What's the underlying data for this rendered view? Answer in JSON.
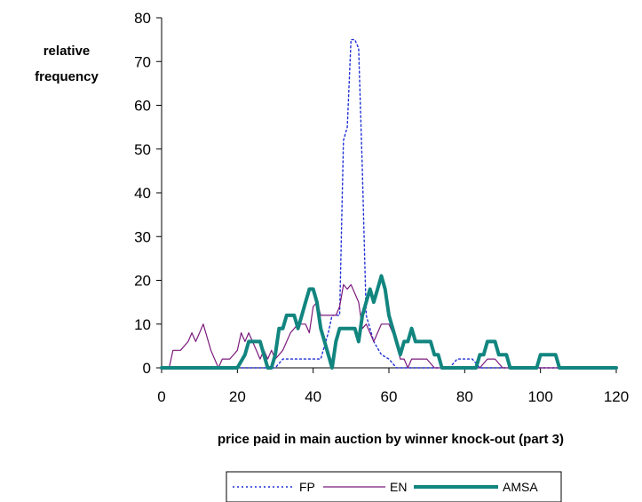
{
  "chart_data": {
    "type": "line",
    "ylabel_lines": [
      "relative",
      "frequency"
    ],
    "xlabel": "price paid in main auction by winner knock-out (part 3)",
    "xlim": [
      0,
      120
    ],
    "ylim": [
      0,
      80
    ],
    "xticks": [
      0,
      20,
      40,
      60,
      80,
      100,
      120
    ],
    "yticks": [
      0,
      10,
      20,
      30,
      40,
      50,
      60,
      70,
      80
    ],
    "legend_position": "bottom",
    "series": [
      {
        "name": "FP",
        "color": "#1f2fd6",
        "style": "dotted",
        "points": [
          [
            0,
            0
          ],
          [
            30,
            0
          ],
          [
            32,
            2
          ],
          [
            42,
            2
          ],
          [
            44,
            8
          ],
          [
            45,
            12
          ],
          [
            47,
            12
          ],
          [
            48,
            52
          ],
          [
            49,
            55
          ],
          [
            50,
            75
          ],
          [
            51,
            75
          ],
          [
            52,
            73
          ],
          [
            53,
            45
          ],
          [
            54,
            12
          ],
          [
            56,
            6
          ],
          [
            58,
            3
          ],
          [
            60,
            2
          ],
          [
            62,
            0
          ],
          [
            76,
            0
          ],
          [
            78,
            2
          ],
          [
            82,
            2
          ],
          [
            84,
            0
          ],
          [
            120,
            0
          ]
        ]
      },
      {
        "name": "EN",
        "color": "#7b1a7b",
        "style": "solid",
        "points": [
          [
            0,
            0
          ],
          [
            2,
            0
          ],
          [
            3,
            4
          ],
          [
            5,
            4
          ],
          [
            7,
            6
          ],
          [
            8,
            8
          ],
          [
            9,
            6
          ],
          [
            10,
            8
          ],
          [
            11,
            10
          ],
          [
            12,
            7
          ],
          [
            13,
            4
          ],
          [
            14,
            2
          ],
          [
            15,
            0
          ],
          [
            16,
            2
          ],
          [
            18,
            2
          ],
          [
            20,
            4
          ],
          [
            21,
            8
          ],
          [
            22,
            6
          ],
          [
            23,
            8
          ],
          [
            24,
            6
          ],
          [
            25,
            4
          ],
          [
            26,
            2
          ],
          [
            27,
            4
          ],
          [
            28,
            2
          ],
          [
            29,
            4
          ],
          [
            30,
            2
          ],
          [
            32,
            4
          ],
          [
            34,
            8
          ],
          [
            36,
            10
          ],
          [
            38,
            10
          ],
          [
            39,
            8
          ],
          [
            40,
            14
          ],
          [
            41,
            15
          ],
          [
            42,
            12
          ],
          [
            44,
            12
          ],
          [
            46,
            12
          ],
          [
            47,
            14
          ],
          [
            48,
            19
          ],
          [
            49,
            18
          ],
          [
            50,
            19
          ],
          [
            51,
            17
          ],
          [
            52,
            15
          ],
          [
            53,
            9
          ],
          [
            54,
            10
          ],
          [
            55,
            8
          ],
          [
            56,
            6
          ],
          [
            57,
            8
          ],
          [
            58,
            10
          ],
          [
            60,
            10
          ],
          [
            61,
            8
          ],
          [
            62,
            6
          ],
          [
            63,
            2
          ],
          [
            64,
            2
          ],
          [
            65,
            0
          ],
          [
            66,
            2
          ],
          [
            68,
            2
          ],
          [
            70,
            2
          ],
          [
            72,
            0
          ],
          [
            84,
            0
          ],
          [
            86,
            2
          ],
          [
            88,
            2
          ],
          [
            90,
            0
          ],
          [
            120,
            0
          ]
        ]
      },
      {
        "name": "AMSA",
        "color": "#12857f",
        "style": "solid-thick",
        "points": [
          [
            0,
            0
          ],
          [
            20,
            0
          ],
          [
            22,
            3
          ],
          [
            23,
            6
          ],
          [
            26,
            6
          ],
          [
            27,
            3
          ],
          [
            28,
            0
          ],
          [
            29,
            0
          ],
          [
            30,
            3
          ],
          [
            31,
            9
          ],
          [
            32,
            9
          ],
          [
            33,
            12
          ],
          [
            35,
            12
          ],
          [
            36,
            9
          ],
          [
            37,
            12
          ],
          [
            38,
            15
          ],
          [
            39,
            18
          ],
          [
            40,
            18
          ],
          [
            41,
            15
          ],
          [
            42,
            9
          ],
          [
            43,
            6
          ],
          [
            44,
            3
          ],
          [
            45,
            0
          ],
          [
            46,
            6
          ],
          [
            47,
            9
          ],
          [
            51,
            9
          ],
          [
            52,
            6
          ],
          [
            53,
            12
          ],
          [
            54,
            15
          ],
          [
            55,
            18
          ],
          [
            56,
            15
          ],
          [
            57,
            18
          ],
          [
            58,
            21
          ],
          [
            59,
            18
          ],
          [
            60,
            12
          ],
          [
            61,
            9
          ],
          [
            62,
            6
          ],
          [
            63,
            3
          ],
          [
            64,
            6
          ],
          [
            65,
            6
          ],
          [
            66,
            9
          ],
          [
            67,
            6
          ],
          [
            71,
            6
          ],
          [
            72,
            3
          ],
          [
            73,
            3
          ],
          [
            74,
            0
          ],
          [
            83,
            0
          ],
          [
            84,
            3
          ],
          [
            85,
            3
          ],
          [
            86,
            6
          ],
          [
            88,
            6
          ],
          [
            89,
            3
          ],
          [
            91,
            3
          ],
          [
            92,
            0
          ],
          [
            99,
            0
          ],
          [
            100,
            3
          ],
          [
            104,
            3
          ],
          [
            105,
            0
          ],
          [
            120,
            0
          ]
        ]
      }
    ]
  }
}
